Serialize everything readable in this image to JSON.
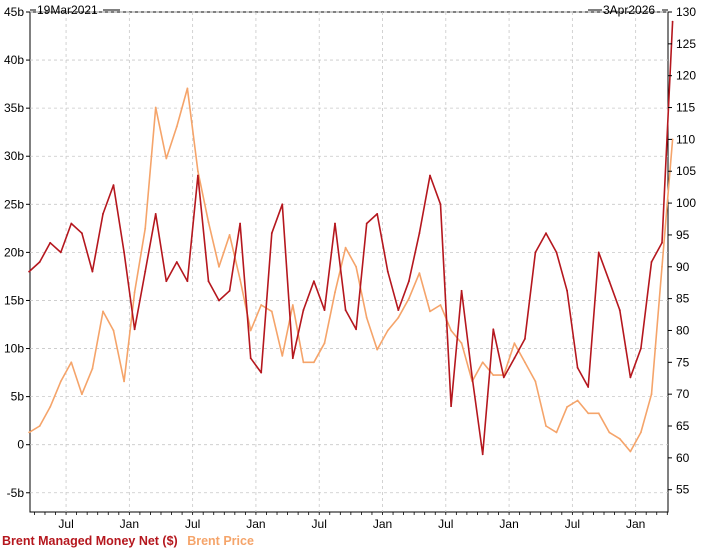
{
  "chart_data": {
    "type": "line",
    "title": "",
    "start_date": "19Mar2021",
    "end_date": "3Apr2026",
    "x_tick_labels": [
      "Jul",
      "Jan",
      "Jul",
      "Jan",
      "Jul",
      "Jan",
      "Jul",
      "Jan",
      "Jul",
      "Jan"
    ],
    "left_axis": {
      "ylim": [
        -7,
        45
      ],
      "ticks": [
        -5,
        0,
        5,
        10,
        15,
        20,
        25,
        30,
        35,
        40,
        45
      ],
      "tick_labels": [
        "-5b",
        "0",
        "5b",
        "10b",
        "15b",
        "20b",
        "25b",
        "30b",
        "35b",
        "40b",
        "45b"
      ]
    },
    "right_axis": {
      "ylim": [
        51.5,
        130
      ],
      "ticks": [
        55,
        60,
        65,
        70,
        75,
        80,
        85,
        90,
        95,
        100,
        105,
        110,
        115,
        120,
        125,
        130
      ],
      "tick_labels": [
        "55",
        "60",
        "65",
        "70",
        "75",
        "80",
        "85",
        "90",
        "95",
        "100",
        "105",
        "110",
        "115",
        "120",
        "125",
        "130"
      ]
    },
    "grid": true,
    "series": [
      {
        "name": "Brent Managed Money Net ($)",
        "color": "#b5171e",
        "axis": "left",
        "unit": "billion USD",
        "x": [
          "2021-03",
          "2021-04",
          "2021-05",
          "2021-06",
          "2021-07",
          "2021-08",
          "2021-09",
          "2021-10",
          "2021-11",
          "2021-12",
          "2022-01",
          "2022-02",
          "2022-03",
          "2022-04",
          "2022-05",
          "2022-06",
          "2022-07",
          "2022-08",
          "2022-09",
          "2022-10",
          "2022-11",
          "2022-12",
          "2023-01",
          "2023-02",
          "2023-03",
          "2023-04",
          "2023-05",
          "2023-06",
          "2023-07",
          "2023-08",
          "2023-09",
          "2023-10",
          "2023-11",
          "2023-12",
          "2024-01",
          "2024-02",
          "2024-03",
          "2024-04",
          "2024-05",
          "2024-06",
          "2024-07",
          "2024-08",
          "2024-09",
          "2024-10",
          "2024-11",
          "2024-12",
          "2025-01",
          "2025-02",
          "2025-03",
          "2025-04",
          "2025-05",
          "2025-06",
          "2025-07",
          "2025-08",
          "2025-09",
          "2025-10",
          "2025-11",
          "2025-12",
          "2026-01",
          "2026-02",
          "2026-03",
          "2026-04"
        ],
        "values": [
          18,
          19,
          21,
          20,
          23,
          22,
          18,
          24,
          27,
          20,
          12,
          18,
          24,
          17,
          19,
          17,
          28,
          17,
          15,
          16,
          23,
          9,
          7.5,
          22,
          25,
          9,
          14,
          17,
          14,
          23,
          14,
          12,
          23,
          24,
          18,
          14,
          17,
          22,
          28,
          25,
          4,
          16,
          7,
          -1,
          12,
          7,
          9,
          11,
          20,
          22,
          20,
          16,
          8,
          6,
          20,
          17,
          14,
          7,
          10,
          19,
          21,
          44
        ]
      },
      {
        "name": "Brent Price",
        "color": "#f5a46a",
        "axis": "right",
        "unit": "USD",
        "x": [
          "2021-03",
          "2021-04",
          "2021-05",
          "2021-06",
          "2021-07",
          "2021-08",
          "2021-09",
          "2021-10",
          "2021-11",
          "2021-12",
          "2022-01",
          "2022-02",
          "2022-03",
          "2022-04",
          "2022-05",
          "2022-06",
          "2022-07",
          "2022-08",
          "2022-09",
          "2022-10",
          "2022-11",
          "2022-12",
          "2023-01",
          "2023-02",
          "2023-03",
          "2023-04",
          "2023-05",
          "2023-06",
          "2023-07",
          "2023-08",
          "2023-09",
          "2023-10",
          "2023-11",
          "2023-12",
          "2024-01",
          "2024-02",
          "2024-03",
          "2024-04",
          "2024-05",
          "2024-06",
          "2024-07",
          "2024-08",
          "2024-09",
          "2024-10",
          "2024-11",
          "2024-12",
          "2025-01",
          "2025-02",
          "2025-03",
          "2025-04",
          "2025-05",
          "2025-06",
          "2025-07",
          "2025-08",
          "2025-09",
          "2025-10",
          "2025-11",
          "2025-12",
          "2026-01",
          "2026-02",
          "2026-03",
          "2026-04"
        ],
        "values": [
          64,
          65,
          68,
          72,
          75,
          70,
          74,
          83,
          80,
          72,
          86,
          96,
          115,
          107,
          112,
          118,
          105,
          97,
          90,
          95,
          88,
          80,
          84,
          83,
          76,
          84,
          75,
          75,
          78,
          86,
          93,
          90,
          82,
          77,
          80,
          82,
          85,
          89,
          83,
          84,
          80,
          78,
          72,
          75,
          73,
          73,
          78,
          75,
          72,
          65,
          64,
          68,
          69,
          67,
          67,
          64,
          63,
          61,
          64,
          70,
          90,
          110
        ]
      }
    ],
    "legend": {
      "placement": "bottom-left",
      "entries": [
        "Brent Managed Money Net ($)",
        "Brent Price"
      ]
    }
  }
}
